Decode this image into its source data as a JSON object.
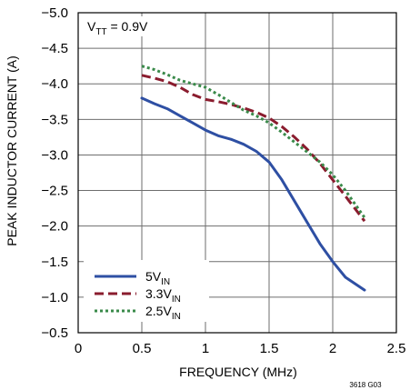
{
  "chart_data": {
    "type": "line",
    "title": "",
    "xlabel": "FREQUENCY (MHz)",
    "ylabel": "PEAK INDUCTOR CURRENT (A)",
    "xlim": [
      0,
      2.5
    ],
    "ylim": [
      -0.5,
      -5.0
    ],
    "y_axis_inverted": true,
    "x_ticks": [
      0,
      0.5,
      1,
      1.5,
      2,
      2.5
    ],
    "x_tick_labels": [
      "0",
      "0.5",
      "1",
      "1.5",
      "2",
      "2.5"
    ],
    "y_ticks": [
      -5.0,
      -4.5,
      -4.0,
      -3.5,
      -3.0,
      -2.5,
      -2.0,
      -1.5,
      -1.0,
      -0.5
    ],
    "y_tick_labels": [
      "−5.0",
      "−4.5",
      "−4.0",
      "−3.5",
      "−3.0",
      "−2.5",
      "−2.0",
      "−1.5",
      "−1.0",
      "−0.5"
    ],
    "grid": true,
    "legend_position": "bottom-left",
    "annotation": {
      "main": "V",
      "sub": "TT",
      "rest": " = 0.9V"
    },
    "figure_id": "3618 G03",
    "series": [
      {
        "name": "5VIN",
        "label_main": "5V",
        "label_sub": "IN",
        "color": "#2e4fa3",
        "style": "solid",
        "x": [
          0.5,
          0.6,
          0.7,
          0.8,
          0.9,
          1.0,
          1.1,
          1.2,
          1.3,
          1.4,
          1.5,
          1.6,
          1.7,
          1.8,
          1.9,
          2.0,
          2.1,
          2.25
        ],
        "y": [
          -3.8,
          -3.72,
          -3.65,
          -3.55,
          -3.45,
          -3.35,
          -3.27,
          -3.22,
          -3.15,
          -3.05,
          -2.9,
          -2.65,
          -2.35,
          -2.05,
          -1.75,
          -1.5,
          -1.28,
          -1.1
        ]
      },
      {
        "name": "3.3VIN",
        "label_main": "3.3V",
        "label_sub": "IN",
        "color": "#8a1c2e",
        "style": "dashed",
        "x": [
          0.5,
          0.6,
          0.7,
          0.8,
          0.9,
          1.0,
          1.1,
          1.2,
          1.3,
          1.4,
          1.5,
          1.6,
          1.7,
          1.8,
          1.9,
          2.0,
          2.1,
          2.25
        ],
        "y": [
          -4.12,
          -4.08,
          -4.03,
          -3.95,
          -3.85,
          -3.78,
          -3.75,
          -3.71,
          -3.66,
          -3.6,
          -3.52,
          -3.4,
          -3.25,
          -3.08,
          -2.88,
          -2.65,
          -2.42,
          -2.07
        ]
      },
      {
        "name": "2.5VIN",
        "label_main": "2.5V",
        "label_sub": "IN",
        "color": "#3a8a4a",
        "style": "dotted",
        "x": [
          0.5,
          0.6,
          0.7,
          0.8,
          0.9,
          1.0,
          1.1,
          1.2,
          1.3,
          1.4,
          1.5,
          1.6,
          1.7,
          1.8,
          1.9,
          2.0,
          2.1,
          2.25
        ],
        "y": [
          -4.25,
          -4.2,
          -4.13,
          -4.05,
          -4.0,
          -3.95,
          -3.85,
          -3.74,
          -3.63,
          -3.55,
          -3.45,
          -3.32,
          -3.18,
          -3.04,
          -2.9,
          -2.72,
          -2.5,
          -2.12
        ]
      }
    ]
  }
}
